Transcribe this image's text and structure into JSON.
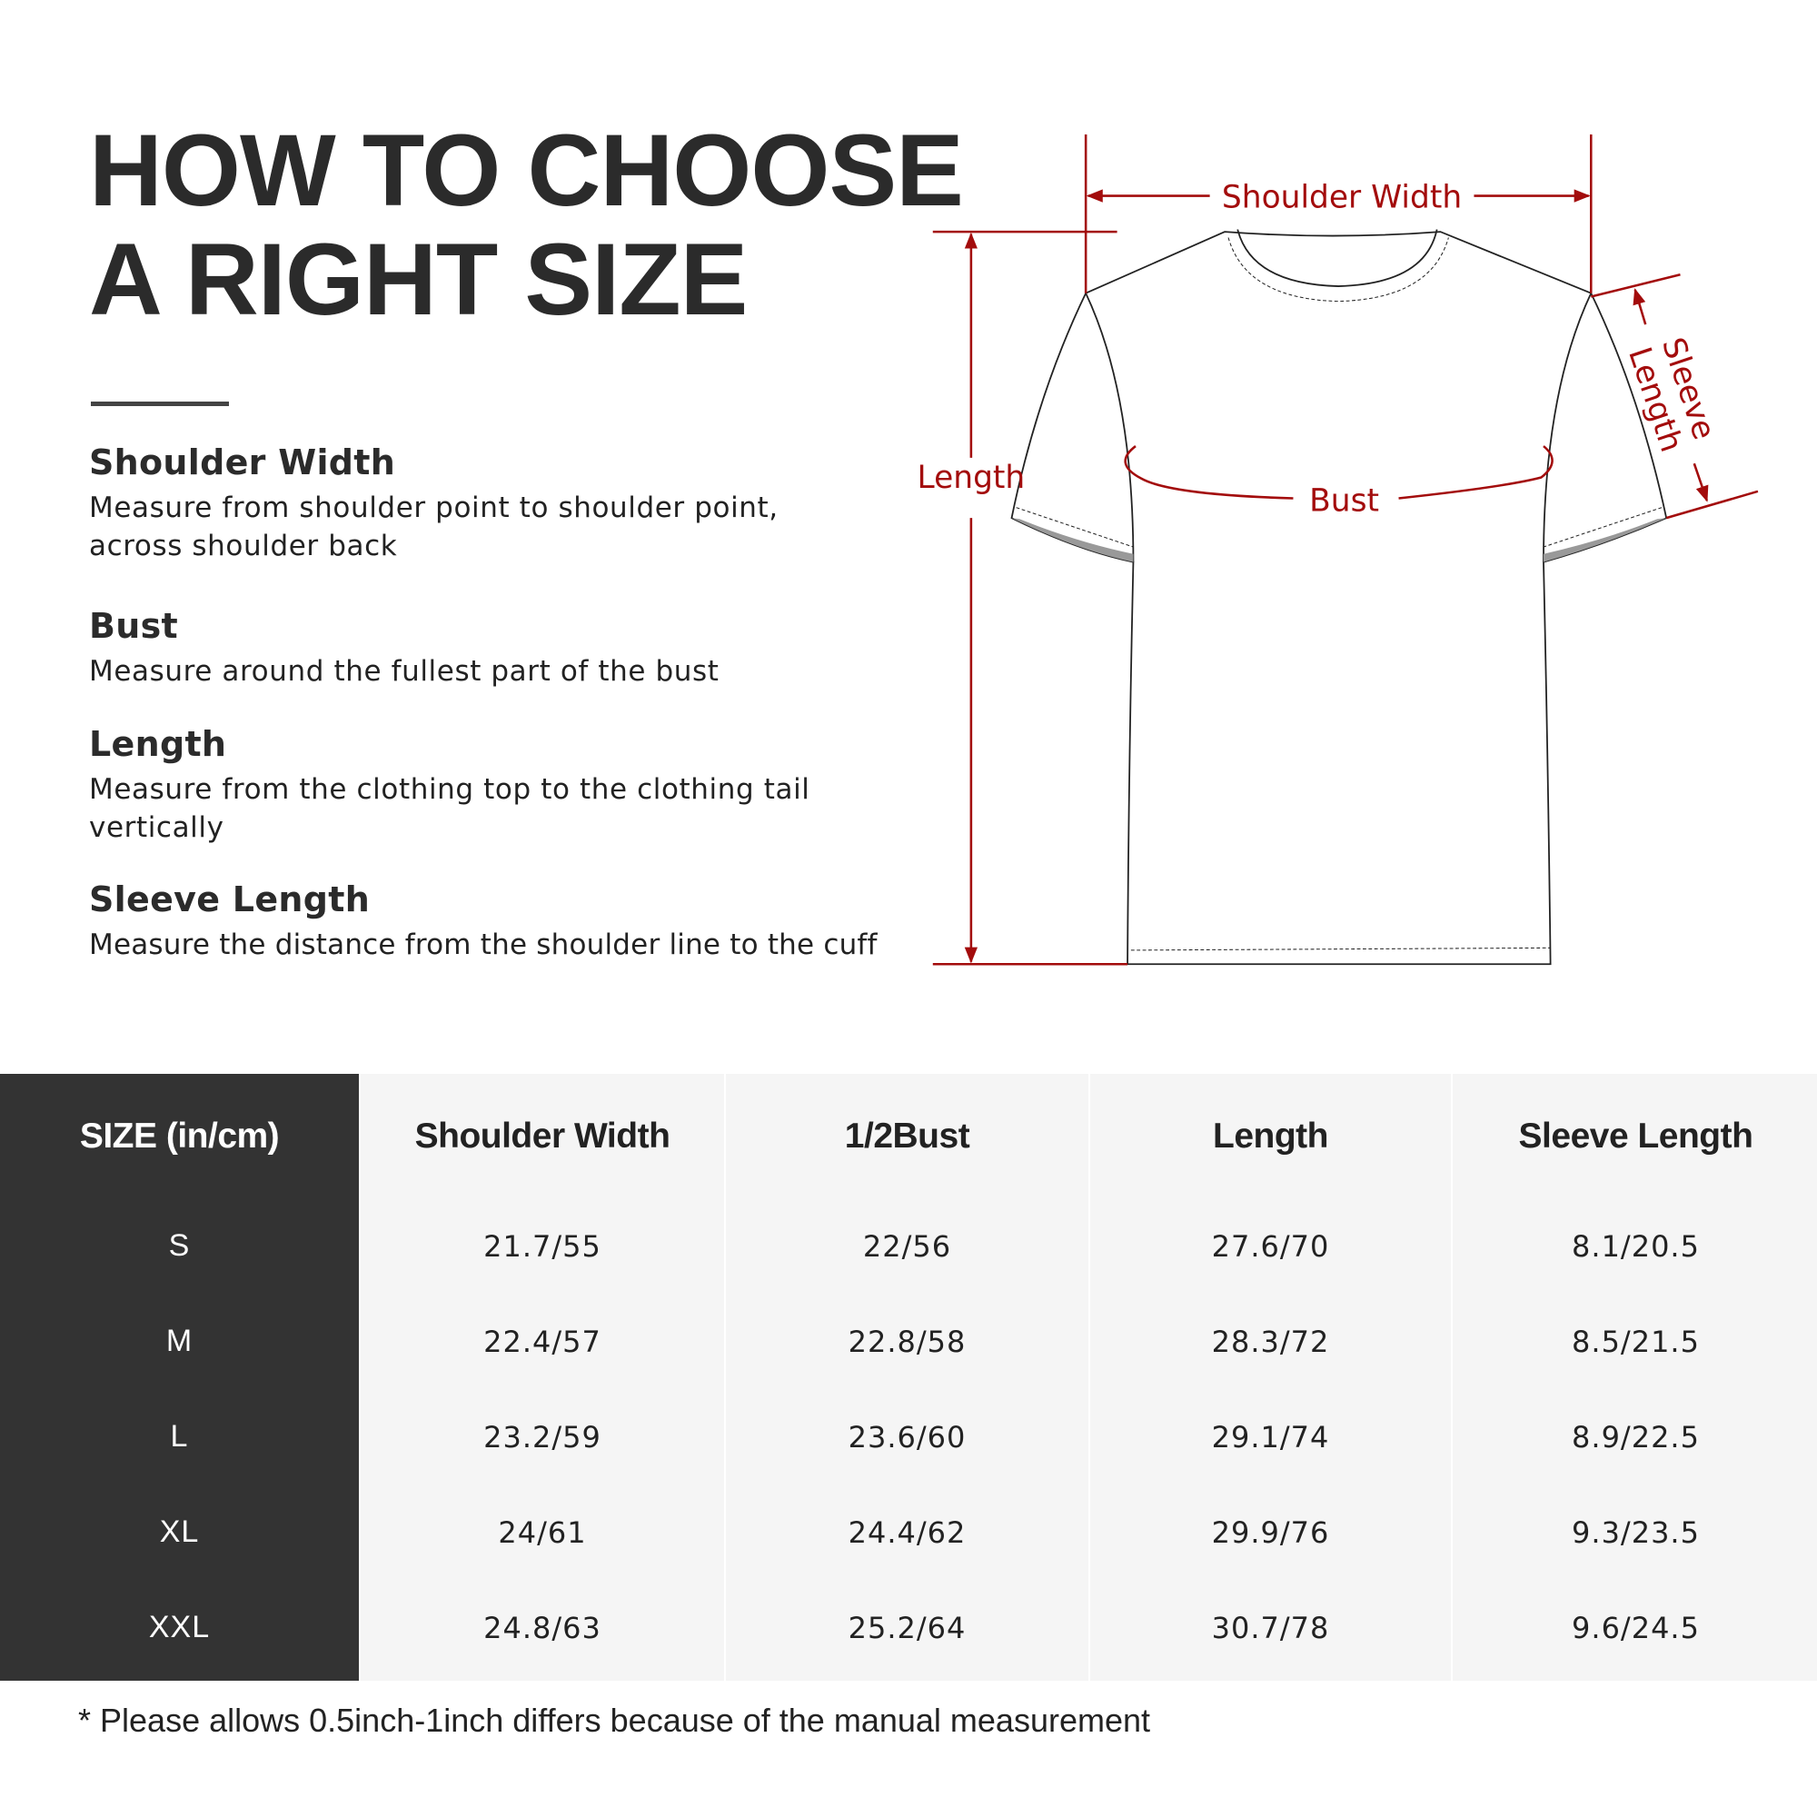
{
  "title": {
    "line1": "HOW TO CHOOSE",
    "line2": "A RIGHT SIZE"
  },
  "guide": [
    {
      "heading": "Shoulder Width",
      "desc1": "Measure from shoulder point to shoulder point,",
      "desc2": "across shoulder back"
    },
    {
      "heading": "Bust",
      "desc1": "Measure around the fullest part of the bust",
      "desc2": ""
    },
    {
      "heading": "Length",
      "desc1": "Measure from the clothing top to the clothing tail",
      "desc2": "vertically"
    },
    {
      "heading": "Sleeve Length",
      "desc1": "Measure the distance from the shoulder line to the cuff",
      "desc2": ""
    }
  ],
  "diagram": {
    "shoulder_width": "Shoulder Width",
    "length": "Length",
    "bust": "Bust",
    "sleeve1": "Sleeve",
    "sleeve2": "Length",
    "accent_color": "#a30c0c"
  },
  "table": {
    "headers": [
      "SIZE  (in/cm)",
      "Shoulder Width",
      "1/2Bust",
      "Length",
      "Sleeve Length"
    ],
    "rows": [
      [
        "S",
        "21.7/55",
        "22/56",
        "27.6/70",
        "8.1/20.5"
      ],
      [
        "M",
        "22.4/57",
        "22.8/58",
        "28.3/72",
        "8.5/21.5"
      ],
      [
        "L",
        "23.2/59",
        "23.6/60",
        "29.1/74",
        "8.9/22.5"
      ],
      [
        "XL",
        "24/61",
        "24.4/62",
        "29.9/76",
        "9.3/23.5"
      ],
      [
        "XXL",
        "24.8/63",
        "25.2/64",
        "30.7/78",
        "9.6/24.5"
      ]
    ],
    "colors": {
      "size_column": "#333333",
      "data_columns": "#f5f5f5"
    }
  },
  "footnote": "* Please allows 0.5inch-1inch differs because of the  manual measurement"
}
